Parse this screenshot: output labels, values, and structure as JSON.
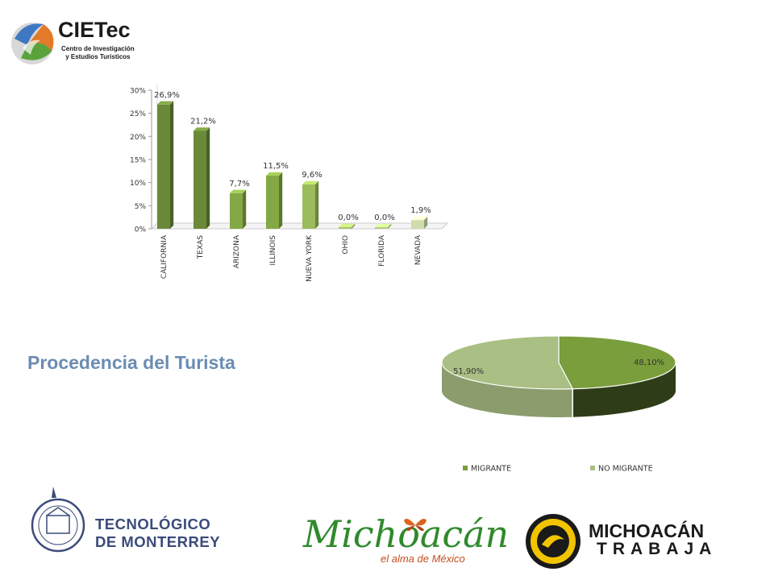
{
  "header": {
    "logo_title": "CIETec",
    "logo_sub1": "Centro de Investigación",
    "logo_sub2": "y Estudios Turísticos"
  },
  "section_title": "Procedencia del Turista",
  "chart_data": [
    {
      "type": "bar",
      "categories": [
        "CALIFORNIA",
        "TEXAS",
        "ARIZONA",
        "ILLINOIS",
        "NUEVA YORK",
        "OHIO",
        "FLORIDA",
        "NEVADA"
      ],
      "values": [
        26.9,
        21.2,
        7.7,
        11.5,
        9.6,
        0.0,
        0.0,
        1.9
      ],
      "data_labels": [
        "26,9%",
        "21,2%",
        "7,7%",
        "11,5%",
        "9,6%",
        "0,0%",
        "0,0%",
        "1,9%"
      ],
      "yticks": [
        "0%",
        "5%",
        "10%",
        "15%",
        "20%",
        "25%",
        "30%"
      ],
      "ylim": [
        0,
        30
      ],
      "title": "",
      "xlabel": "",
      "ylabel": "",
      "grid": false,
      "colors": [
        "#6a8a3a",
        "#6a8a3a",
        "#84a845",
        "#84a845",
        "#9cbc5c",
        "#a9c46e",
        "#b5cc84",
        "#cfdcae"
      ]
    },
    {
      "type": "pie",
      "categories": [
        "MIGRANTE",
        "NO MIGRANTE"
      ],
      "values": [
        48.1,
        51.9
      ],
      "data_labels": [
        "48,10%",
        "51,90%"
      ],
      "colors": [
        "#7a9e3c",
        "#a9bf84"
      ],
      "legend": "bottom"
    }
  ],
  "footer": {
    "tec_line1": "TECNOLÓGICO",
    "tec_line2": "DE MONTERREY",
    "mich_title": "Michoacán",
    "mich_tagline": "el alma de México",
    "mt_line1": "MICHOACÁN",
    "mt_line2": "TRABAJA"
  }
}
